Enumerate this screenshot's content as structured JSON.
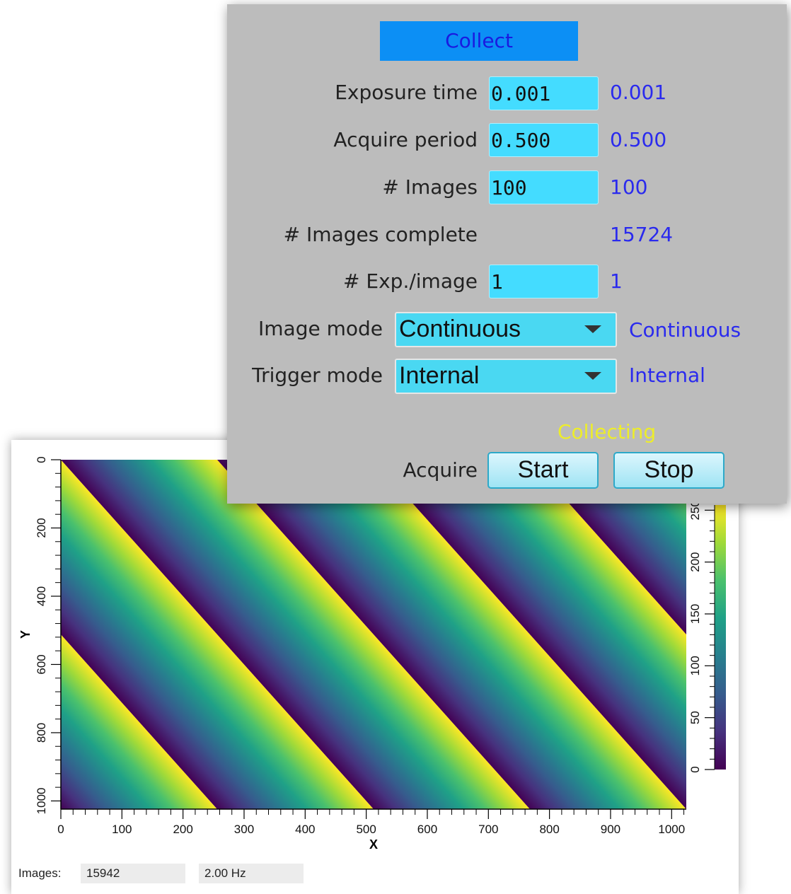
{
  "viewer": {
    "image_count_label": "Images:",
    "image_count": "15942",
    "rate": "2.00 Hz"
  },
  "chart_data": {
    "type": "heatmap",
    "xlabel": "X",
    "ylabel": "Y",
    "xlim": [
      0,
      1024
    ],
    "ylim": [
      1024,
      0
    ],
    "x_ticks": [
      "0",
      "100",
      "200",
      "300",
      "400",
      "500",
      "600",
      "700",
      "800",
      "900",
      "1000"
    ],
    "y_ticks": [
      "0",
      "200",
      "400",
      "600",
      "800",
      "1000"
    ],
    "colorbar": {
      "range": [
        0,
        255
      ],
      "ticks": [
        "0",
        "50",
        "100",
        "150",
        "200",
        "250"
      ],
      "colormap": "viridis"
    },
    "pattern": "diagonal ramp bands, period ~256 px along x, slope ~0.5"
  },
  "panel": {
    "title": "Collect",
    "colors": {
      "entry": "#44dcff",
      "readback": "#2a2aee",
      "status": "#eded2a",
      "title_bg": "#0c8ff5"
    },
    "exposure_time": {
      "label": "Exposure time",
      "value": "0.001",
      "readback": "0.001"
    },
    "acquire_period": {
      "label": "Acquire period",
      "value": "0.500",
      "readback": "0.500"
    },
    "num_images": {
      "label": "# Images",
      "value": "100",
      "readback": "100"
    },
    "images_complete": {
      "label": "# Images complete",
      "readback": "15724"
    },
    "exp_per_image": {
      "label": "# Exp./image",
      "value": "1",
      "readback": "1"
    },
    "image_mode": {
      "label": "Image mode",
      "selected": "Continuous",
      "readback": "Continuous"
    },
    "trigger_mode": {
      "label": "Trigger mode",
      "selected": "Internal",
      "readback": "Internal"
    },
    "acquire": {
      "status": "Collecting",
      "label": "Acquire",
      "start_label": "Start",
      "stop_label": "Stop"
    }
  }
}
